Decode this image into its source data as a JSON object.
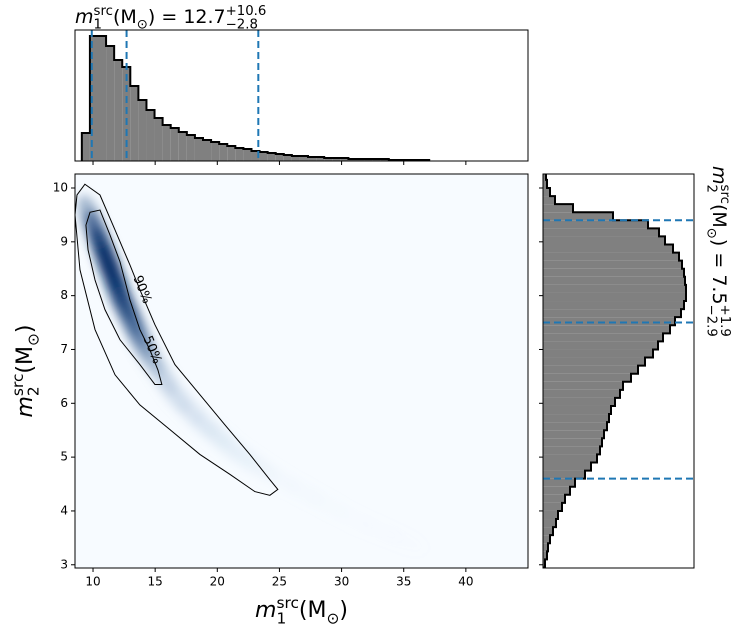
{
  "chart_data": [
    {
      "type": "heatmap",
      "x_label": {
        "var": "m",
        "sup": "src",
        "sub": "1",
        "unit": " (M",
        "unit_sub": "⊙",
        "close": ")"
      },
      "y_label": {
        "var": "m",
        "sup": "src",
        "sub": "2",
        "unit": " (M",
        "unit_sub": "⊙",
        "close": ")"
      },
      "xlim": [
        8.55,
        45
      ],
      "ylim": [
        2.94,
        10.26
      ],
      "xticks": [
        10,
        15,
        20,
        25,
        30,
        35,
        40
      ],
      "yticks": [
        3,
        4,
        5,
        6,
        7,
        8,
        9,
        10
      ],
      "cmap": "Blues",
      "density": {
        "x": [
          9.8,
          10.3,
          10.8,
          11.3,
          11.8,
          12.3,
          12.8,
          13.3,
          13.8,
          14.5,
          15.5,
          16.5,
          17.5,
          18.5,
          19.5,
          20.5,
          21.5,
          22.5,
          23.5,
          25,
          27,
          29,
          31,
          33,
          35
        ],
        "y": [
          9.45,
          9.15,
          8.85,
          8.55,
          8.25,
          7.95,
          7.7,
          7.45,
          7.2,
          6.9,
          6.55,
          6.2,
          5.95,
          5.7,
          5.5,
          5.3,
          5.1,
          4.95,
          4.8,
          4.6,
          4.35,
          4.1,
          3.85,
          3.65,
          3.45
        ],
        "values": [
          0.55,
          0.75,
          0.9,
          1.0,
          1.0,
          0.95,
          0.85,
          0.75,
          0.6,
          0.45,
          0.32,
          0.25,
          0.2,
          0.17,
          0.15,
          0.12,
          0.1,
          0.08,
          0.07,
          0.05,
          0.04,
          0.03,
          0.025,
          0.02,
          0.015
        ]
      },
      "contours": [
        {
          "label": "90%",
          "x": [
            9.35,
            10.56,
            11.77,
            12.97,
            13.77,
            14.98,
            16.59,
            18.6,
            20.61,
            22.62,
            24.23,
            24.87,
            24.23,
            23.02,
            21.01,
            18.6,
            16.19,
            13.77,
            11.77,
            10.16,
            8.95,
            8.55,
            8.71
          ],
          "y": [
            10.07,
            9.87,
            9.22,
            8.57,
            8.11,
            7.46,
            6.72,
            6.16,
            5.6,
            5.05,
            4.58,
            4.4,
            4.29,
            4.36,
            4.68,
            5.05,
            5.51,
            5.97,
            6.53,
            7.37,
            8.48,
            9.5,
            9.87
          ]
        },
        {
          "label": "50%",
          "x": [
            9.76,
            10.56,
            11.36,
            12.17,
            12.97,
            13.77,
            14.58,
            15.22,
            15.54,
            14.98,
            13.77,
            12.17,
            10.96,
            10.16,
            9.6,
            9.43
          ],
          "y": [
            9.55,
            9.59,
            9.13,
            8.63,
            7.92,
            7.37,
            6.99,
            6.62,
            6.35,
            6.35,
            6.72,
            7.18,
            7.74,
            8.29,
            8.85,
            9.31
          ]
        }
      ]
    },
    {
      "type": "histogram",
      "orientation": "vertical",
      "title": {
        "var": "m",
        "sup": "src",
        "sub": "1",
        "unit": " (M",
        "unit_sub": "⊙",
        "rest": ") = 12.7",
        "plus": "+10.6",
        "minus": "−2.8"
      },
      "bins": [
        9.1,
        9.75,
        10.4,
        11.05,
        11.7,
        12.35,
        13.0,
        13.65,
        14.3,
        14.95,
        15.6,
        16.25,
        16.9,
        17.55,
        18.2,
        18.85,
        19.5,
        20.15,
        20.8,
        21.45,
        22.1,
        22.75,
        23.4,
        24.05,
        24.7,
        25.35,
        26.0,
        26.65,
        27.3,
        27.95,
        28.6,
        29.25,
        29.9,
        30.55,
        31.2,
        31.85,
        32.5,
        33.15,
        33.8,
        34.45,
        35.1,
        35.75,
        36.4,
        37.05
      ],
      "values": [
        28,
        125,
        125,
        115,
        101,
        94,
        75,
        61,
        51,
        43,
        36,
        33,
        29,
        26,
        23,
        21,
        19,
        17,
        15,
        13,
        12,
        10,
        9,
        8,
        7,
        6,
        5,
        5,
        4,
        4,
        3,
        3,
        3,
        2,
        2,
        2,
        2,
        2,
        1,
        1,
        1,
        1,
        1
      ],
      "ylim": [
        0,
        131
      ],
      "quantiles": [
        9.9,
        12.7,
        23.3
      ],
      "color": "#808080",
      "edge_color": "#000000",
      "quantile_color": "#1f77b4"
    },
    {
      "type": "histogram",
      "orientation": "horizontal",
      "title": {
        "var": "m",
        "sup": "src",
        "sub": "2",
        "unit": " (M",
        "unit_sub": "⊙",
        "rest": ") = 7.5",
        "plus": "+1.9",
        "minus": "−2.9"
      },
      "bins": [
        2.95,
        3.1,
        3.25,
        3.4,
        3.55,
        3.7,
        3.85,
        4.0,
        4.15,
        4.3,
        4.45,
        4.6,
        4.75,
        4.9,
        5.05,
        5.2,
        5.35,
        5.5,
        5.65,
        5.8,
        5.95,
        6.1,
        6.25,
        6.4,
        6.55,
        6.7,
        6.85,
        7.0,
        7.15,
        7.3,
        7.45,
        7.6,
        7.75,
        7.9,
        8.05,
        8.2,
        8.35,
        8.5,
        8.65,
        8.8,
        8.95,
        9.1,
        9.25,
        9.4,
        9.55,
        9.7,
        9.85,
        10.0,
        10.15,
        10.3
      ],
      "values": [
        2,
        4,
        5,
        7,
        10,
        13,
        15,
        19,
        22,
        27,
        32,
        42,
        48,
        54,
        57,
        59,
        61,
        64,
        66,
        68,
        72,
        77,
        80,
        88,
        95,
        102,
        110,
        115,
        120,
        127,
        132,
        138,
        141,
        143,
        143,
        142,
        141,
        139,
        136,
        130,
        122,
        116,
        105,
        70,
        30,
        12,
        7,
        4,
        3
      ],
      "xlim": [
        0,
        151
      ],
      "quantiles": [
        4.6,
        7.5,
        9.4
      ],
      "color": "#808080",
      "edge_color": "#000000",
      "quantile_color": "#1f77b4"
    }
  ]
}
